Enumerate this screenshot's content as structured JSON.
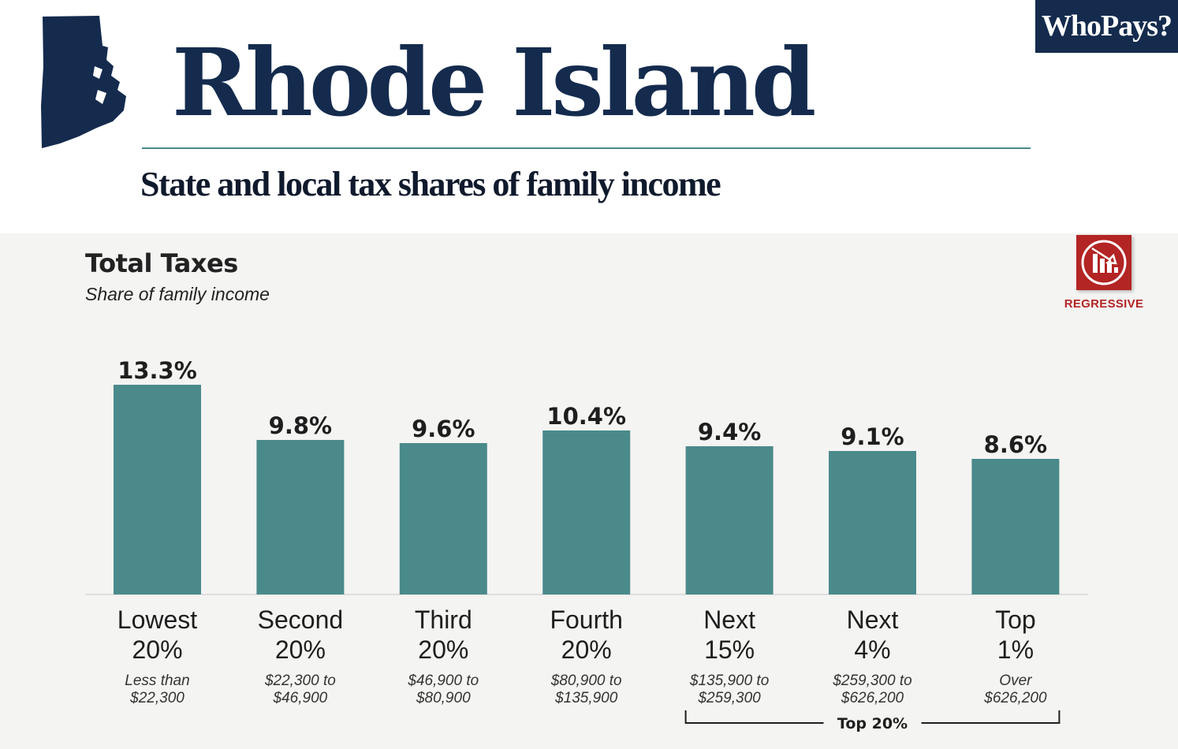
{
  "header": {
    "title": "Rhode Island",
    "subtitle": "State and local tax shares of family income",
    "brand": "WhoPays?"
  },
  "badge": {
    "label": "REGRESSIVE",
    "icon": "declining-bar-chart-icon",
    "color": "#b32524"
  },
  "colors": {
    "bar": "#4a8a8b",
    "navy": "#142b4e",
    "panel": "#f4f4f2"
  },
  "chart_data": {
    "type": "bar",
    "title": "Total Taxes",
    "subtitle": "Share of family income",
    "categories": [
      {
        "name": [
          "Lowest",
          "20%"
        ],
        "range": [
          "Less than",
          "$22,300"
        ]
      },
      {
        "name": [
          "Second",
          "20%"
        ],
        "range": [
          "$22,300 to",
          "$46,900"
        ]
      },
      {
        "name": [
          "Third",
          "20%"
        ],
        "range": [
          "$46,900 to",
          "$80,900"
        ]
      },
      {
        "name": [
          "Fourth",
          "20%"
        ],
        "range": [
          "$80,900 to",
          "$135,900"
        ]
      },
      {
        "name": [
          "Next",
          "15%"
        ],
        "range": [
          "$135,900 to",
          "$259,300"
        ]
      },
      {
        "name": [
          "Next",
          "4%"
        ],
        "range": [
          "$259,300 to",
          "$626,200"
        ]
      },
      {
        "name": [
          "Top",
          "1%"
        ],
        "range": [
          "Over",
          "$626,200"
        ]
      }
    ],
    "values": [
      13.3,
      9.8,
      9.6,
      10.4,
      9.4,
      9.1,
      8.6
    ],
    "value_labels": [
      "13.3%",
      "9.8%",
      "9.6%",
      "10.4%",
      "9.4%",
      "9.1%",
      "8.6%"
    ],
    "ylim": [
      0,
      14.4
    ],
    "grid": false,
    "group_bracket": {
      "label": "Top 20%",
      "from_index": 4,
      "to_index": 6
    }
  }
}
